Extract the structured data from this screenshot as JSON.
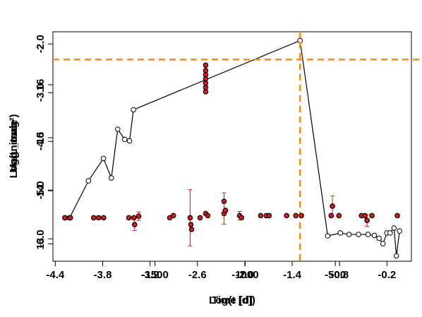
{
  "chart_data": [
    {
      "type": "line",
      "x_label": "Log(t [d])",
      "y_label": "Log(L_mag²)",
      "color": "#000000",
      "ref_color": "#ff8c00",
      "x": [
        -4.275,
        -4.22,
        -3.98,
        -3.79,
        -3.69,
        -3.61,
        -3.52,
        -3.46,
        -3.41,
        -1.3,
        -0.95,
        -0.79,
        -0.68,
        -0.56,
        -0.44,
        -0.36,
        -0.3,
        -0.25,
        -0.2,
        -0.16,
        -0.11,
        -0.08,
        -0.04
      ],
      "values": [
        -5.57,
        -5.57,
        -4.81,
        -4.35,
        -4.75,
        -3.75,
        -3.96,
        -3.99,
        -3.35,
        -1.93,
        -5.94,
        -5.88,
        -5.91,
        -5.91,
        -5.91,
        -5.93,
        -5.99,
        -6.1,
        -5.88,
        -5.88,
        -5.78,
        -6.35,
        -5.84
      ],
      "vline": -1.3,
      "hline": -2.32,
      "xlim": [
        -4.43,
        0.11
      ],
      "ylim": [
        -6.46,
        -1.75
      ],
      "xticks": [
        -4.4,
        -3.8,
        -3.2,
        -2.6,
        {
          "value": -2,
          "label": "-2.0"
        },
        -1.4,
        -0.8,
        -0.2
      ],
      "yticks": [
        {
          "value": -2,
          "label": "-2.0"
        },
        {
          "value": -3,
          "label": "-3.0"
        },
        {
          "value": -4,
          "label": "-4.0"
        },
        {
          "value": -5,
          "label": "-5.0"
        },
        {
          "value": -6,
          "label": "-6.0"
        }
      ]
    },
    {
      "type": "scatter",
      "x_label": "Time [d]",
      "y_label": "Magnitude",
      "color": "#e31a1c",
      "edge_color": "#000000",
      "x": [
        -2000,
        -1969,
        -1840,
        -1813,
        -1785,
        -1645,
        -1617,
        -1613,
        -1590,
        -1418,
        -1398,
        -1305,
        -1301,
        -1297,
        -1250,
        -1219,
        -1207,
        -1117,
        -1117,
        -1109,
        -1031,
        -1020,
        -914,
        -883,
        -867,
        -770,
        -719,
        -688,
        -523,
        -516,
        -480,
        -355,
        -336,
        -324,
        -297,
        -156,
        -1219,
        -1219,
        -1219,
        -1219,
        -1219,
        -1219,
        -1219
      ],
      "values": [
        13.49,
        13.49,
        13.49,
        13.49,
        13.49,
        13.49,
        13.49,
        13.36,
        13.52,
        13.49,
        13.53,
        13.49,
        13.36,
        13.27,
        13.49,
        13.57,
        13.53,
        13.57,
        13.8,
        13.63,
        13.53,
        13.49,
        13.53,
        13.53,
        13.53,
        13.53,
        13.53,
        13.53,
        13.53,
        13.71,
        13.53,
        13.53,
        13.53,
        13.44,
        13.53,
        13.53,
        16.37,
        16.27,
        16.19,
        16.11,
        16.03,
        15.95,
        15.87
      ],
      "errors": [
        null,
        null,
        null,
        null,
        null,
        null,
        null,
        0.11,
        0.08,
        null,
        null,
        0.53,
        null,
        null,
        null,
        null,
        null,
        0.2,
        0.16,
        null,
        0.08,
        null,
        null,
        null,
        null,
        null,
        null,
        null,
        null,
        0.19,
        null,
        null,
        null,
        0.11,
        null,
        null,
        null,
        null,
        null,
        null,
        null,
        null,
        null
      ],
      "xlim": [
        -2066,
        -78
      ],
      "ylim": [
        12.67,
        17
      ],
      "xticks": [
        -1500,
        -1000,
        -500
      ],
      "yticks": [
        13,
        14,
        15,
        16
      ]
    }
  ]
}
